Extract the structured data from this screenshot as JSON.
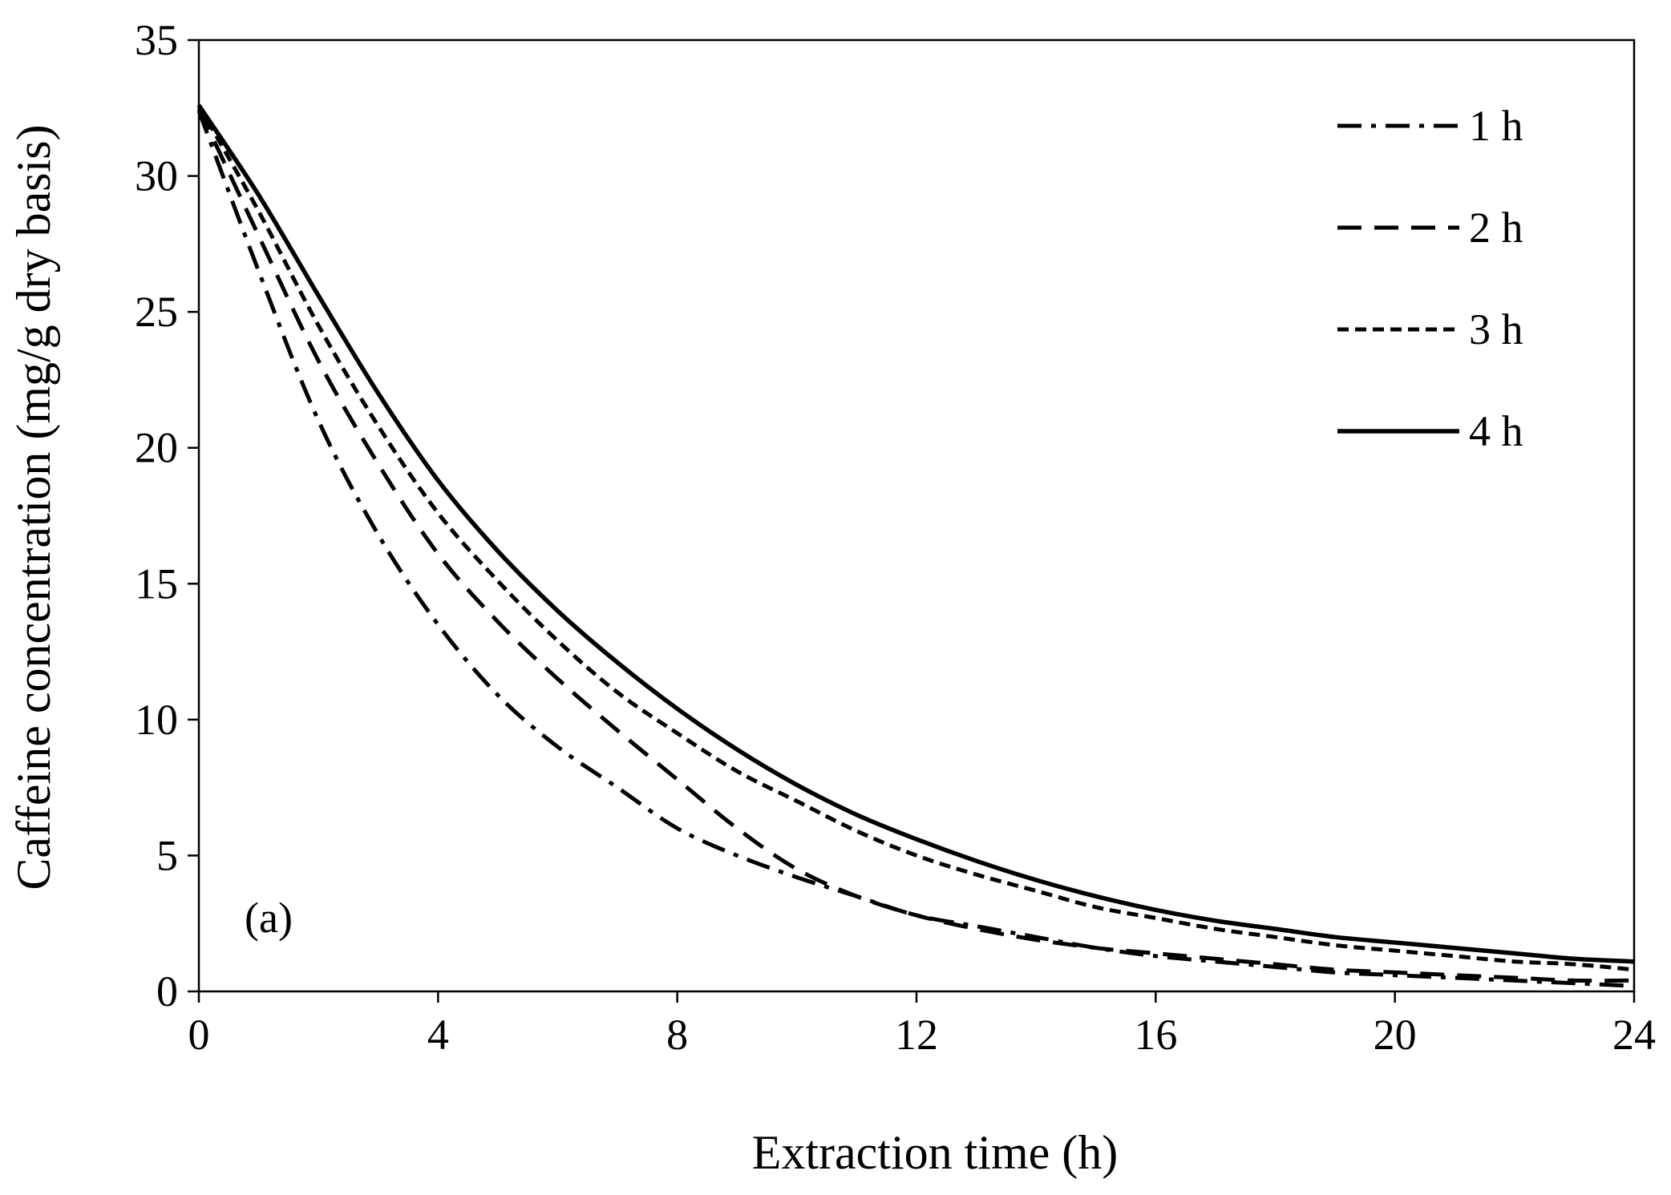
{
  "chart_data": {
    "type": "line",
    "panel_label": "(a)",
    "xlabel": "Extraction time (h)",
    "ylabel": "Caffeine concentration (mg/g dry basis)",
    "xlim": [
      0,
      24
    ],
    "ylim": [
      0,
      35
    ],
    "x_ticks": [
      0,
      4,
      8,
      12,
      16,
      20,
      24
    ],
    "y_ticks": [
      0,
      5,
      10,
      15,
      20,
      25,
      30,
      35
    ],
    "grid": false,
    "legend_position": "top-right",
    "x": [
      0,
      1,
      2,
      3,
      4,
      5,
      6,
      7,
      8,
      9,
      10,
      11,
      12,
      13,
      14,
      15,
      16,
      17,
      18,
      19,
      20,
      21,
      22,
      23,
      24
    ],
    "series": [
      {
        "name": "1 h",
        "style": "dash-dot",
        "values": [
          32.4,
          26.5,
          21.0,
          16.8,
          13.5,
          10.9,
          9.0,
          7.5,
          6.0,
          5.0,
          4.2,
          3.5,
          2.8,
          2.4,
          2.0,
          1.6,
          1.3,
          1.1,
          0.9,
          0.7,
          0.6,
          0.5,
          0.4,
          0.3,
          0.2
        ]
      },
      {
        "name": "2 h",
        "style": "long-dash",
        "values": [
          32.5,
          27.8,
          23.2,
          19.4,
          16.1,
          13.6,
          11.5,
          9.6,
          7.8,
          6.0,
          4.5,
          3.5,
          2.8,
          2.3,
          1.9,
          1.6,
          1.4,
          1.2,
          1.0,
          0.8,
          0.7,
          0.6,
          0.5,
          0.4,
          0.4
        ]
      },
      {
        "name": "3 h",
        "style": "short-dash",
        "values": [
          32.6,
          28.7,
          24.5,
          20.8,
          17.6,
          15.1,
          12.9,
          11.0,
          9.5,
          8.1,
          7.0,
          5.9,
          5.0,
          4.3,
          3.7,
          3.1,
          2.7,
          2.3,
          2.0,
          1.7,
          1.5,
          1.3,
          1.1,
          1.0,
          0.8
        ]
      },
      {
        "name": "4 h",
        "style": "solid",
        "values": [
          32.6,
          29.3,
          25.6,
          22.0,
          18.8,
          16.2,
          14.0,
          12.1,
          10.4,
          8.9,
          7.6,
          6.5,
          5.6,
          4.8,
          4.1,
          3.5,
          3.0,
          2.6,
          2.3,
          2.0,
          1.8,
          1.6,
          1.4,
          1.2,
          1.1
        ]
      }
    ]
  }
}
